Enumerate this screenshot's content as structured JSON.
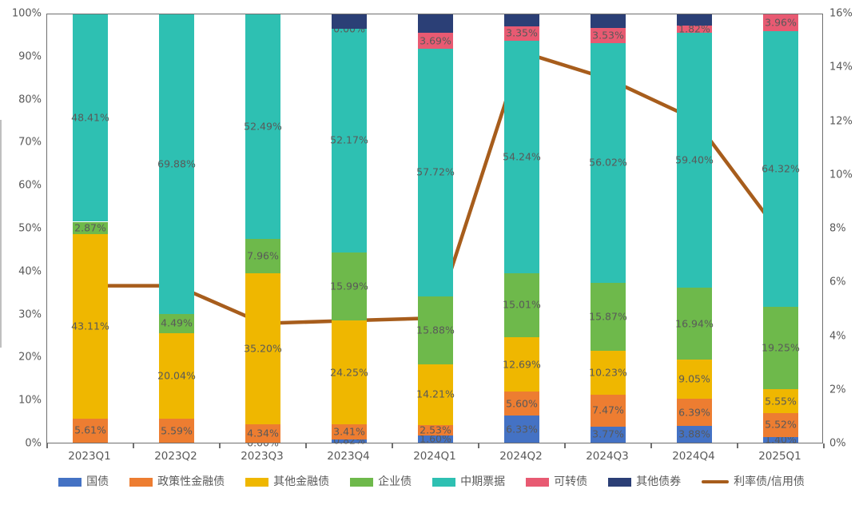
{
  "chart_data": {
    "type": "bar",
    "subtype": "stacked-percent-with-line",
    "categories": [
      "2023Q1",
      "2023Q2",
      "2023Q3",
      "2023Q4",
      "2024Q1",
      "2024Q2",
      "2024Q3",
      "2024Q4",
      "2025Q1"
    ],
    "series": [
      {
        "name": "国债",
        "color": "#4472C4",
        "values": [
          0,
          0,
          0.0,
          0.82,
          1.6,
          6.33,
          3.77,
          3.88,
          1.4
        ],
        "labels": [
          null,
          null,
          "0.00%",
          "0.82%",
          "1.60%",
          "6.33%",
          "3.77%",
          "3.88%",
          "1.40%"
        ]
      },
      {
        "name": "政策性金融债",
        "color": "#ED7D31",
        "values": [
          5.61,
          5.59,
          4.34,
          3.41,
          2.53,
          5.6,
          7.47,
          6.39,
          5.52
        ],
        "labels": [
          "5.61%",
          "5.59%",
          "4.34%",
          "3.41%",
          "2.53%",
          "5.60%",
          "7.47%",
          "6.39%",
          "5.52%"
        ]
      },
      {
        "name": "其他金融债",
        "color": "#EFB700",
        "values": [
          43.11,
          20.04,
          35.2,
          24.25,
          14.21,
          12.69,
          10.23,
          9.05,
          5.55
        ],
        "labels": [
          "43.11%",
          "20.04%",
          "35.20%",
          "24.25%",
          "14.21%",
          "12.69%",
          "10.23%",
          "9.05%",
          "5.55%"
        ]
      },
      {
        "name": "企业债",
        "color": "#6EB94B",
        "values": [
          2.87,
          4.49,
          7.96,
          15.99,
          15.88,
          15.01,
          15.87,
          16.94,
          19.25
        ],
        "labels": [
          "2.87%",
          "4.49%",
          "7.96%",
          "15.99%",
          "15.88%",
          "15.01%",
          "15.87%",
          "16.94%",
          "19.25%"
        ]
      },
      {
        "name": "中期票据",
        "color": "#2EC0B2",
        "values": [
          48.41,
          69.88,
          52.49,
          52.17,
          57.72,
          54.24,
          56.02,
          59.4,
          64.32
        ],
        "labels": [
          "48.41%",
          "69.88%",
          "52.49%",
          "52.17%",
          "57.72%",
          "54.24%",
          "56.02%",
          "59.40%",
          "64.32%"
        ]
      },
      {
        "name": "可转债",
        "color": "#E85A72",
        "values": [
          0,
          0,
          0,
          0.0,
          3.69,
          3.35,
          3.53,
          1.82,
          3.96
        ],
        "labels": [
          null,
          null,
          null,
          "0.00%",
          "3.69%",
          "3.35%",
          "3.53%",
          "1.82%",
          "3.96%"
        ]
      },
      {
        "name": "其他债券",
        "color": "#2B3F76",
        "values": [
          0,
          0,
          0,
          3.36,
          4.37,
          2.78,
          3.11,
          2.52,
          0
        ],
        "labels": [
          null,
          null,
          null,
          null,
          null,
          null,
          null,
          null,
          null
        ]
      }
    ],
    "line_series": {
      "name": "利率债/信用债",
      "color": "#A75D1C",
      "axis": "right",
      "values": [
        5.9,
        5.9,
        4.5,
        4.6,
        4.7,
        14.6,
        13.6,
        12.1,
        7.8
      ]
    },
    "left_axis": {
      "min": 0,
      "max": 100,
      "ticks": [
        "0%",
        "10%",
        "20%",
        "30%",
        "40%",
        "50%",
        "60%",
        "70%",
        "80%",
        "90%",
        "100%"
      ]
    },
    "right_axis": {
      "min": 0,
      "max": 16,
      "ticks": [
        "0%",
        "2%",
        "4%",
        "6%",
        "8%",
        "10%",
        "12%",
        "14%",
        "16%"
      ]
    },
    "legend": [
      {
        "label": "国债",
        "type": "bar",
        "color": "#4472C4"
      },
      {
        "label": "政策性金融债",
        "type": "bar",
        "color": "#ED7D31"
      },
      {
        "label": "其他金融债",
        "type": "bar",
        "color": "#EFB700"
      },
      {
        "label": "企业债",
        "type": "bar",
        "color": "#6EB94B"
      },
      {
        "label": "中期票据",
        "type": "bar",
        "color": "#2EC0B2"
      },
      {
        "label": "可转债",
        "type": "bar",
        "color": "#E85A72"
      },
      {
        "label": "其他债券",
        "type": "bar",
        "color": "#2B3F76"
      },
      {
        "label": "利率债/信用债",
        "type": "line",
        "color": "#A75D1C"
      }
    ],
    "grid": false,
    "legend_position": "bottom",
    "label_color": "#595959"
  }
}
